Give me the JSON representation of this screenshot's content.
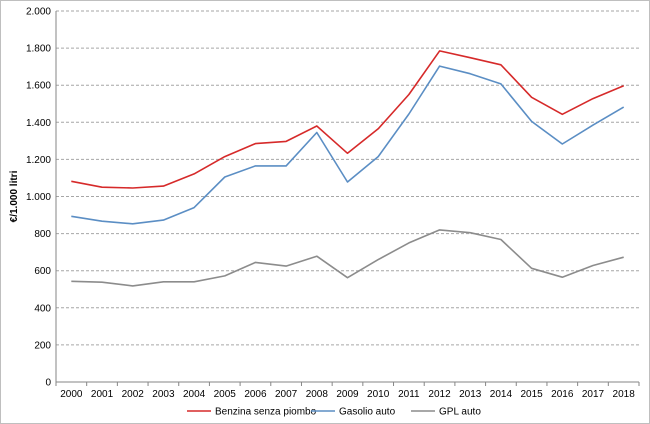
{
  "chart_data": {
    "type": "line",
    "ylabel": "€/1.000 litri",
    "xlabel": "",
    "title": "",
    "ylim": [
      0,
      2000
    ],
    "y_ticks": [
      0,
      200,
      400,
      600,
      800,
      1000,
      1200,
      1400,
      1600,
      1800,
      2000
    ],
    "y_tick_labels": [
      "0",
      "200",
      "400",
      "600",
      "800",
      "1.000",
      "1.200",
      "1.400",
      "1.600",
      "1.800",
      "2.000"
    ],
    "grid": "horizontal dashed",
    "legend_position": "bottom",
    "categories": [
      "2000",
      "2001",
      "2002",
      "2003",
      "2004",
      "2005",
      "2006",
      "2007",
      "2008",
      "2009",
      "2010",
      "2011",
      "2012",
      "2013",
      "2014",
      "2015",
      "2016",
      "2017",
      "2018"
    ],
    "series": [
      {
        "name": "Benzina senza piombo",
        "color": "#d62a2a",
        "values": [
          1082,
          1050,
          1046,
          1056,
          1122,
          1215,
          1285,
          1297,
          1380,
          1233,
          1365,
          1550,
          1785,
          1748,
          1710,
          1535,
          1443,
          1528,
          1597
        ]
      },
      {
        "name": "Gasolio auto",
        "color": "#5b8ec4",
        "values": [
          893,
          867,
          853,
          873,
          940,
          1105,
          1165,
          1165,
          1345,
          1078,
          1215,
          1445,
          1703,
          1662,
          1607,
          1405,
          1283,
          1385,
          1482
        ]
      },
      {
        "name": "GPL auto",
        "color": "#8c8c8c",
        "values": [
          543,
          538,
          518,
          540,
          540,
          572,
          645,
          625,
          678,
          562,
          660,
          750,
          820,
          805,
          768,
          613,
          565,
          628,
          673
        ]
      }
    ]
  }
}
